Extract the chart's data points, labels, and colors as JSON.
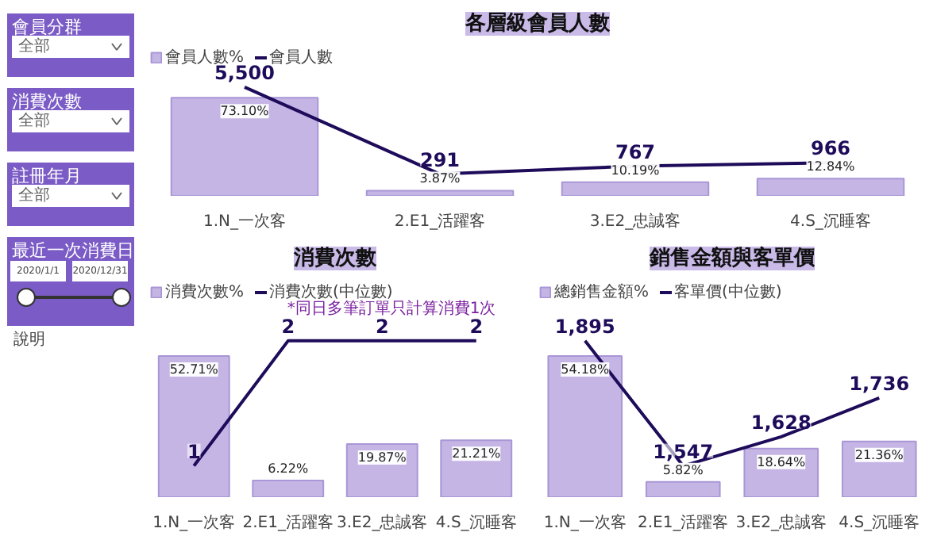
{
  "chart_data": [
    {
      "type": "other",
      "annotations": [
        "會員分群",
        "全部",
        "消費次數",
        "全部",
        "註冊年月",
        "全部",
        "最近一次消費日",
        "2020/1/1",
        "2020/12/31",
        "說明"
      ]
    },
    {
      "type": "bar",
      "title": "各層級會員人數",
      "categories": [
        "1.N_一次客",
        "2.E1_活躍客",
        "3.E2_忠誠客",
        "4.S_沉睡客"
      ],
      "tick_labels": "x",
      "legend": "top left",
      "series": [
        {
          "name": "會員人數%",
          "type": "bar",
          "color": "#c5b5e5",
          "values": [
            73.1,
            3.87,
            10.19,
            12.84
          ],
          "value_labels": [
            "73.10%",
            "3.87%",
            "10.19%",
            "12.84%"
          ]
        },
        {
          "name": "會員人數",
          "type": "line",
          "axis": "y2",
          "color": "#1e0b5a",
          "values": [
            5500,
            291,
            767,
            966
          ],
          "value_labels": [
            "5,500",
            "291",
            "767",
            "966"
          ]
        }
      ]
    },
    {
      "type": "bar",
      "title": "消費次數",
      "categories": [
        "1.N_一次客",
        "2.E1_活躍客",
        "3.E2_忠誠客",
        "4.S_沉睡客"
      ],
      "tick_labels": "x",
      "legend": "top left",
      "annotations": [
        "*同日多筆訂單只計算消費1次"
      ],
      "series": [
        {
          "name": "消費次數%",
          "type": "bar",
          "color": "#c5b5e5",
          "values": [
            52.71,
            6.22,
            19.87,
            21.21
          ],
          "value_labels": [
            "52.71%",
            "6.22%",
            "19.87%",
            "21.21%"
          ]
        },
        {
          "name": "消費次數(中位數)",
          "type": "line",
          "axis": "y2",
          "color": "#1e0b5a",
          "values": [
            1,
            2,
            2,
            2
          ],
          "value_labels": [
            "1",
            "2",
            "2",
            "2"
          ]
        }
      ]
    },
    {
      "type": "bar",
      "title": "銷售金額與客單價",
      "categories": [
        "1.N_一次客",
        "2.E1_活躍客",
        "3.E2_忠誠客",
        "4.S_沉睡客"
      ],
      "tick_labels": "x",
      "legend": "top left",
      "series": [
        {
          "name": "總銷售金額%",
          "type": "bar",
          "color": "#c5b5e5",
          "values": [
            54.18,
            5.82,
            18.64,
            21.36
          ],
          "value_labels": [
            "54.18%",
            "5.82%",
            "18.64%",
            "21.36%"
          ]
        },
        {
          "name": "客單價(中位數)",
          "type": "line",
          "axis": "y2",
          "color": "#1e0b5a",
          "values": [
            1895,
            1547,
            1628,
            1736
          ],
          "value_labels": [
            "1,895",
            "1,547",
            "1,628",
            "1,736"
          ]
        }
      ]
    }
  ]
}
